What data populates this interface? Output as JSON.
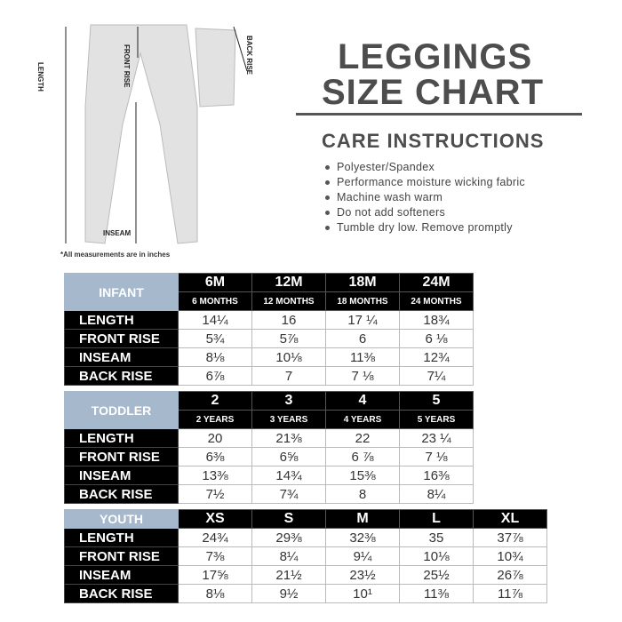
{
  "title_line1": "LEGGINGS",
  "title_line2": "SIZE CHART",
  "care": {
    "heading": "CARE INSTRUCTIONS",
    "items": [
      "Polyester/Spandex",
      "Performance moisture wicking fabric",
      "Machine wash warm",
      "Do not add softeners",
      "Tumble dry low. Remove promptly"
    ]
  },
  "diagram": {
    "length": "LENGTH",
    "front_rise": "FRONT RISE",
    "back_rise": "BACK RISE",
    "inseam": "INSEAM",
    "note": "*All measurements are in inches"
  },
  "colors": {
    "category_bg": "#a6b8cc",
    "header_bg": "#000000"
  },
  "tables": [
    {
      "category": "INFANT",
      "sizes": [
        "6M",
        "12M",
        "18M",
        "24M"
      ],
      "subs": [
        "6 MONTHS",
        "12 MONTHS",
        "18 MONTHS",
        "24 MONTHS"
      ],
      "rows": [
        {
          "label": "LENGTH",
          "values": [
            "14¼",
            "16",
            "17 ¼",
            "18¾"
          ]
        },
        {
          "label": "FRONT RISE",
          "values": [
            "5¾",
            "5⅞",
            "6",
            "6 ⅛"
          ]
        },
        {
          "label": "INSEAM",
          "values": [
            "8⅛",
            "10⅛",
            "11⅜",
            "12¾"
          ]
        },
        {
          "label": "BACK RISE",
          "values": [
            "6⅞",
            "7",
            "7 ⅛",
            "7¼"
          ]
        }
      ]
    },
    {
      "category": "TODDLER",
      "sizes": [
        "2",
        "3",
        "4",
        "5"
      ],
      "subs": [
        "2 YEARS",
        "3 YEARS",
        "4 YEARS",
        "5 YEARS"
      ],
      "rows": [
        {
          "label": "LENGTH",
          "values": [
            "20",
            "21⅜",
            "22",
            "23 ¼"
          ]
        },
        {
          "label": "FRONT RISE",
          "values": [
            "6⅜",
            "6⅝",
            "6 ⅞",
            "7 ⅛"
          ]
        },
        {
          "label": "INSEAM",
          "values": [
            "13⅜",
            "14¾",
            "15⅜",
            "16⅜"
          ]
        },
        {
          "label": "BACK RISE",
          "values": [
            "7½",
            "7¾",
            "8",
            "8¼"
          ]
        }
      ]
    },
    {
      "category": "YOUTH",
      "sizes": [
        "XS",
        "S",
        "M",
        "L",
        "XL"
      ],
      "rows": [
        {
          "label": "LENGTH",
          "values": [
            "24¾",
            "29⅜",
            "32⅜",
            "35",
            "37⅞"
          ]
        },
        {
          "label": "FRONT RISE",
          "values": [
            "7⅜",
            "8¼",
            "9¼",
            "10⅛",
            "10¾"
          ]
        },
        {
          "label": "INSEAM",
          "values": [
            "17⅝",
            "21½",
            "23½",
            "25½",
            "26⅞"
          ]
        },
        {
          "label": "BACK RISE",
          "values": [
            "8⅛",
            "9½",
            "10¹",
            "11⅜",
            "11⅞"
          ]
        }
      ]
    }
  ]
}
